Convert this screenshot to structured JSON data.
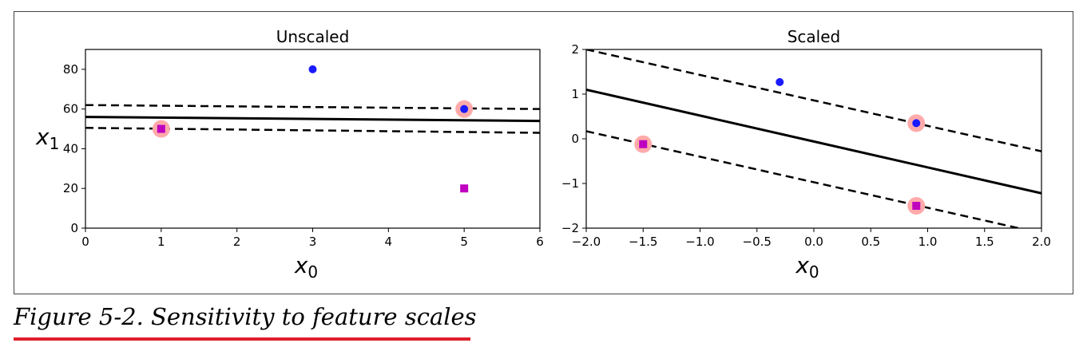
{
  "caption": "Figure 5-2. Sensitivity to feature scales",
  "colors": {
    "blue_class": "#1a1aff",
    "magenta_class": "#bf00bf",
    "support_vector_highlight": "#ffaaaa",
    "boundary": "#000000",
    "caption_underline": "#e0202e"
  },
  "chart_data": [
    {
      "type": "scatter",
      "title": "Unscaled",
      "xlabel": "x",
      "xlabel_subscript": "0",
      "ylabel": "x",
      "ylabel_subscript": "1",
      "xlim": [
        0,
        6
      ],
      "ylim": [
        0,
        90
      ],
      "xticks": [
        0,
        1,
        2,
        3,
        4,
        5,
        6
      ],
      "xtick_labels": [
        "0",
        "1",
        "2",
        "3",
        "4",
        "5",
        "6"
      ],
      "yticks": [
        0,
        20,
        40,
        60,
        80
      ],
      "ytick_labels": [
        "0",
        "20",
        "40",
        "60",
        "80"
      ],
      "points": [
        {
          "x": 3,
          "y": 80,
          "marker": "circle",
          "color": "#1a1aff",
          "support_vector": false
        },
        {
          "x": 5,
          "y": 60,
          "marker": "circle",
          "color": "#1a1aff",
          "support_vector": true
        },
        {
          "x": 1,
          "y": 50,
          "marker": "square",
          "color": "#bf00bf",
          "support_vector": true
        },
        {
          "x": 5,
          "y": 20,
          "marker": "square",
          "color": "#bf00bf",
          "support_vector": false
        }
      ],
      "lines": [
        {
          "style": "solid",
          "x": [
            0,
            6
          ],
          "y": [
            56,
            54
          ]
        },
        {
          "style": "dashed",
          "x": [
            0,
            6
          ],
          "y": [
            62,
            60
          ]
        },
        {
          "style": "dashed",
          "x": [
            0,
            6
          ],
          "y": [
            50.5,
            48
          ]
        }
      ]
    },
    {
      "type": "scatter",
      "title": "Scaled",
      "xlabel": "x",
      "xlabel_subscript": "0",
      "ylabel": "",
      "ylabel_subscript": "",
      "xlim": [
        -2,
        2
      ],
      "ylim": [
        -2,
        2
      ],
      "xticks": [
        -2,
        -1.5,
        -1,
        -0.5,
        0,
        0.5,
        1,
        1.5,
        2
      ],
      "xtick_labels": [
        "−2.0",
        "−1.5",
        "−1.0",
        "−0.5",
        "0.0",
        "0.5",
        "1.0",
        "1.5",
        "2.0"
      ],
      "yticks": [
        -2,
        -1,
        0,
        1,
        2
      ],
      "ytick_labels": [
        "−2",
        "−1",
        "0",
        "1",
        "2"
      ],
      "points": [
        {
          "x": -0.3,
          "y": 1.27,
          "marker": "circle",
          "color": "#1a1aff",
          "support_vector": false
        },
        {
          "x": 0.9,
          "y": 0.35,
          "marker": "circle",
          "color": "#1a1aff",
          "support_vector": true
        },
        {
          "x": -1.5,
          "y": -0.12,
          "marker": "square",
          "color": "#bf00bf",
          "support_vector": true
        },
        {
          "x": 0.9,
          "y": -1.5,
          "marker": "square",
          "color": "#bf00bf",
          "support_vector": true
        }
      ],
      "lines": [
        {
          "style": "solid",
          "x": [
            -2,
            2
          ],
          "y": [
            1.1,
            -1.22
          ]
        },
        {
          "style": "dashed",
          "x": [
            -2,
            2
          ],
          "y": [
            2.0,
            -0.28
          ]
        },
        {
          "style": "dashed",
          "x": [
            -2,
            1.8
          ],
          "y": [
            0.17,
            -2.0
          ]
        }
      ]
    }
  ]
}
